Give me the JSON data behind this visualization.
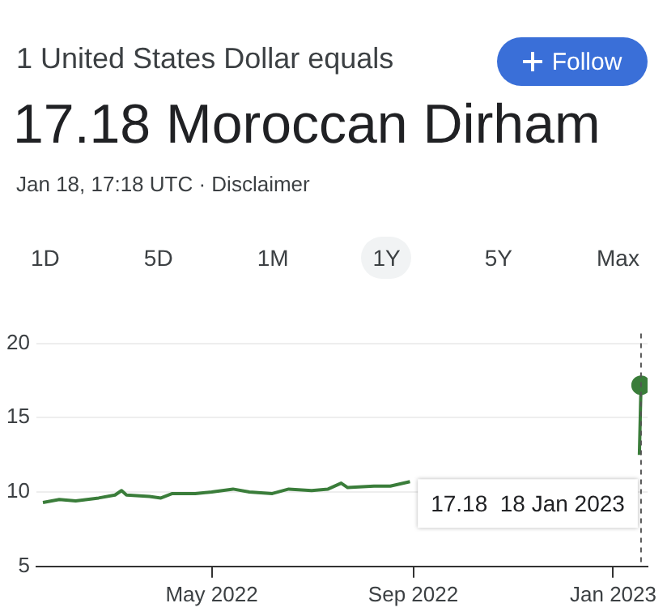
{
  "chart_data": {
    "type": "line",
    "title": "1 United States Dollar equals",
    "subtitle": "17.18 Moroccan Dirham",
    "annotations": [
      "Jan 18, 17:18 UTC · Disclaimer",
      "Follow",
      "1D",
      "5D",
      "1M",
      "1Y",
      "5Y",
      "Max",
      "17.18  18 Jan 2023"
    ],
    "x": [
      "2022-01-18",
      "2022-01-28",
      "2022-02-07",
      "2022-02-21",
      "2022-03-03",
      "2022-03-07",
      "2022-03-10",
      "2022-03-24",
      "2022-03-31",
      "2022-04-07",
      "2022-04-21",
      "2022-05-01",
      "2022-05-14",
      "2022-05-24",
      "2022-06-07",
      "2022-06-17",
      "2022-07-01",
      "2022-07-11",
      "2022-07-19",
      "2022-07-23",
      "2022-08-08",
      "2022-08-18",
      "2022-08-30",
      "2022-09-01",
      "2023-01-17",
      "2023-01-18"
    ],
    "series": [
      {
        "color": "#3a7d3a",
        "values": [
          9.3,
          9.5,
          9.4,
          9.6,
          9.8,
          10.1,
          9.8,
          9.7,
          9.6,
          9.9,
          9.9,
          10.0,
          10.2,
          10.0,
          9.9,
          10.2,
          10.1,
          10.2,
          10.6,
          10.3,
          10.4,
          10.4,
          10.7,
          null,
          12.5,
          17.18
        ]
      }
    ],
    "xlim": [
      "2022-01-14",
      "2023-01-22"
    ],
    "xticks": [
      {
        "value": "2022-05-01",
        "label": "May 2022"
      },
      {
        "value": "2022-09-01",
        "label": "Sep 2022"
      },
      {
        "value": "2023-01-01",
        "label": "Jan 2023"
      }
    ],
    "ylim": [
      5,
      20
    ],
    "yticks": [
      5,
      10,
      15,
      20
    ],
    "grid": "y",
    "marker": "none",
    "ref_lines": [
      {
        "axis": "x",
        "value": "2023-01-18",
        "color": "#555555",
        "line_style": "dashed"
      }
    ]
  }
}
